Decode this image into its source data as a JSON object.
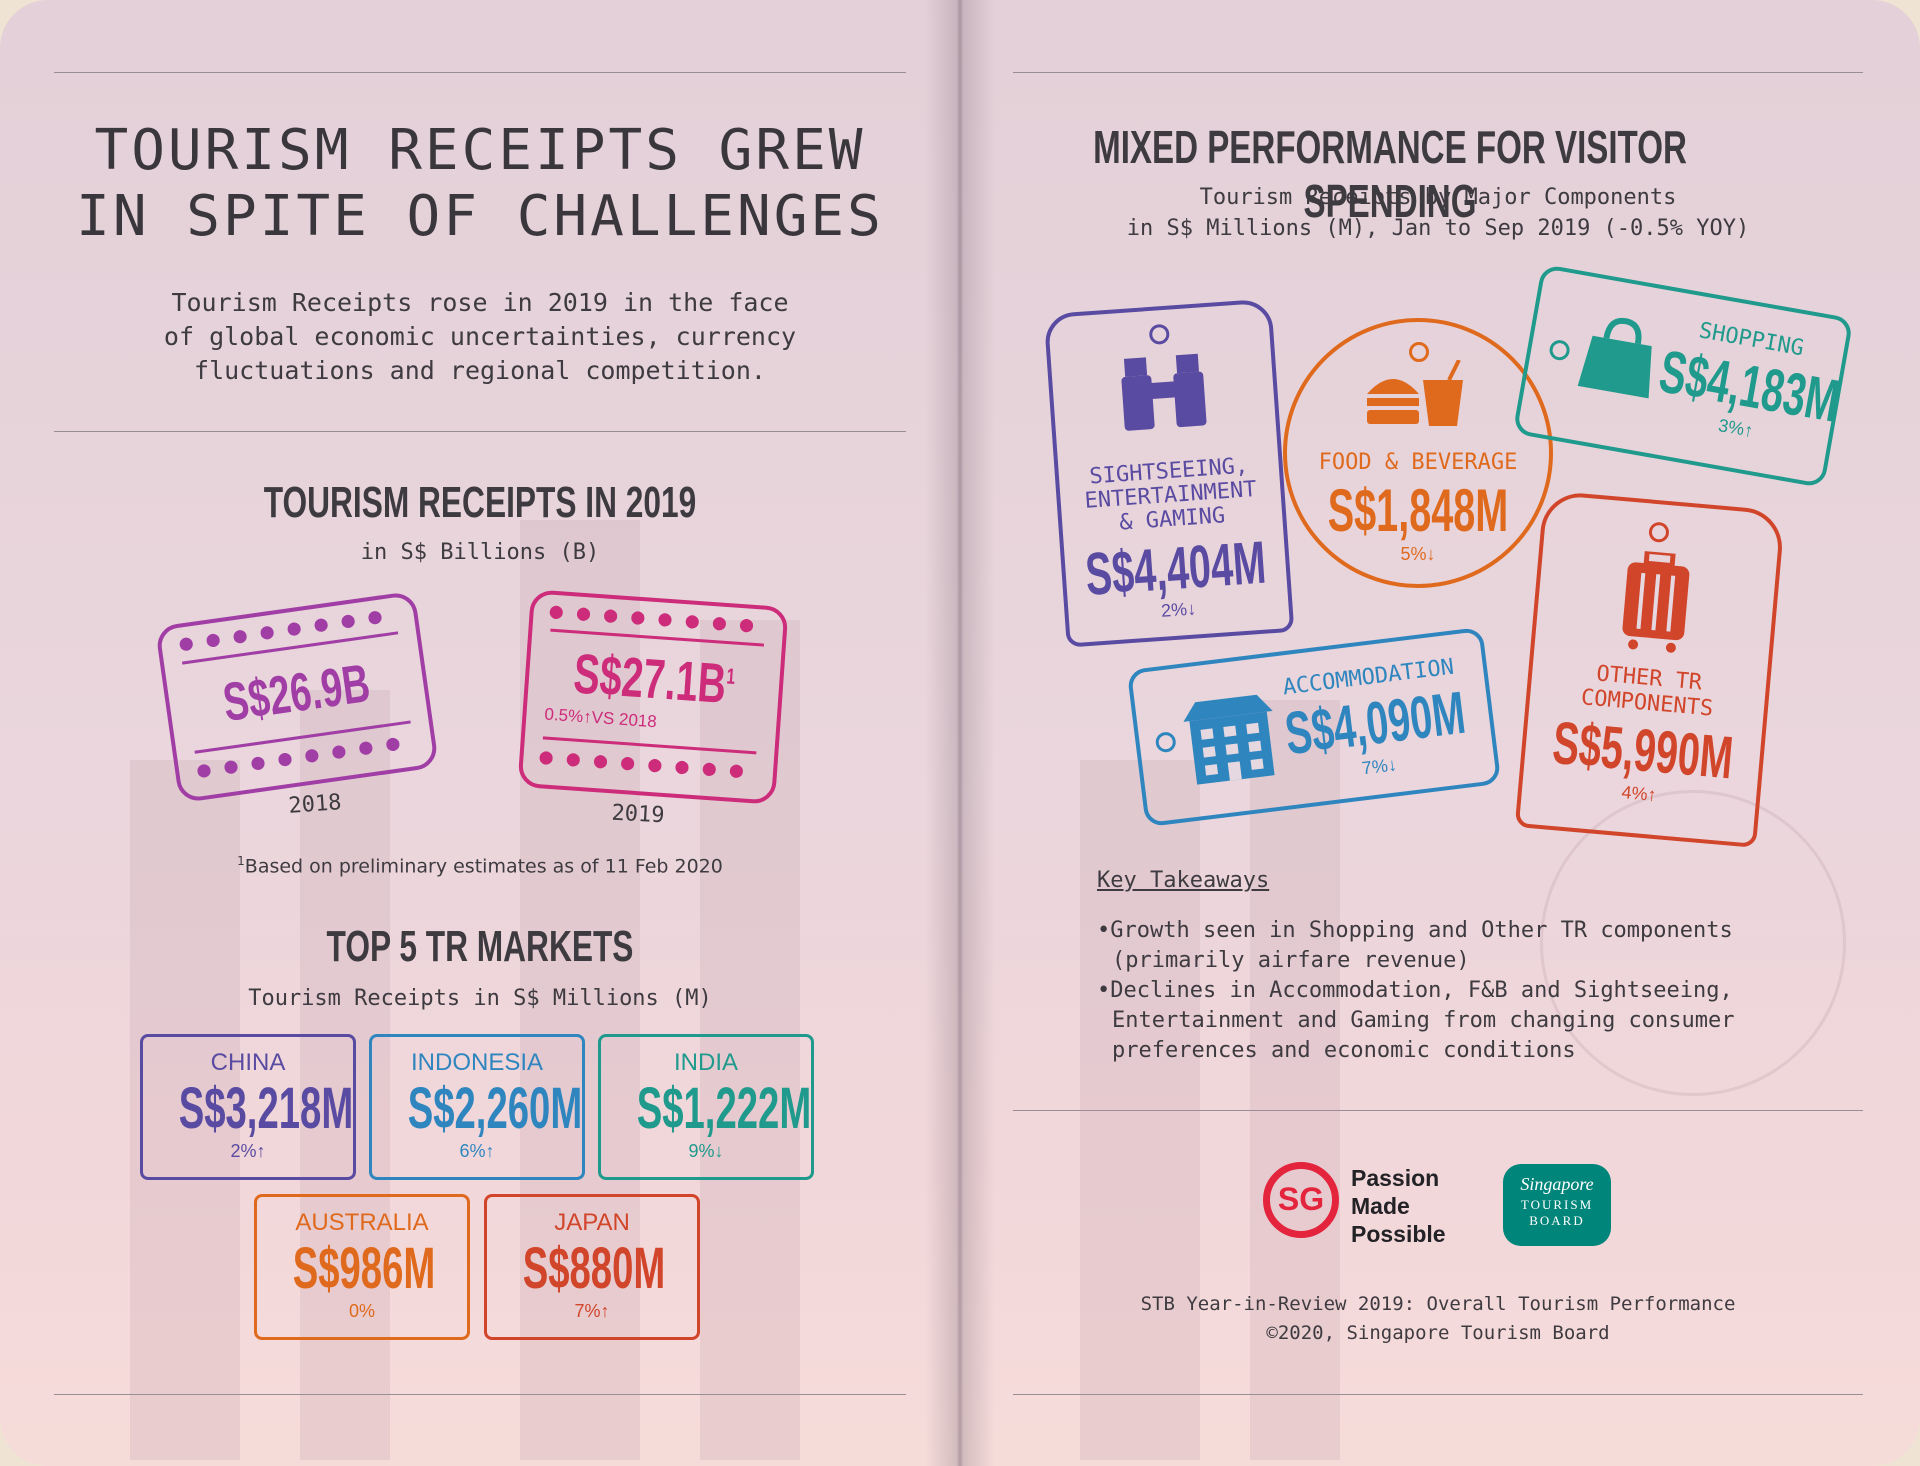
{
  "colors": {
    "sightseeing": "#5a4ba2",
    "food": "#df6a1e",
    "shopping": "#1f9a8c",
    "accommodation": "#2f86bf",
    "other": "#d1452b",
    "stamp2018": "#a03ea6",
    "stamp2019": "#cc2c7a",
    "china": "#5a4ba2",
    "indonesia": "#2f86bf",
    "india": "#1f9a8c",
    "australia": "#df6a1e",
    "japan": "#d1452b",
    "sg_red": "#e3243c",
    "stb_teal": "#00857a"
  },
  "left": {
    "headline_line1": "TOURISM RECEIPTS GREW",
    "headline_line2": "IN SPITE OF CHALLENGES",
    "intro_line1": "Tourism Receipts rose in 2019 in the face",
    "intro_line2": "of global economic uncertainties, currency",
    "intro_line3": "fluctuations and regional competition.",
    "tr_title": "TOURISM RECEIPTS IN 2019",
    "tr_sub": "in S$ Billions (B)",
    "stamp_2018_value": "S$26.9B",
    "stamp_2018_year": "2018",
    "stamp_2019_value": "S$27.1B",
    "stamp_2019_sup": "1",
    "stamp_2019_change": "0.5%↑VS 2018",
    "stamp_2019_year": "2019",
    "footnote_sup": "1",
    "footnote": "Based on preliminary estimates as of 11 Feb 2020",
    "markets_title": "TOP 5 TR MARKETS",
    "markets_sub": "Tourism Receipts in S$ Millions (M)",
    "markets": [
      {
        "name": "CHINA",
        "value": "S$3,218M",
        "change": "2%↑"
      },
      {
        "name": "INDONESIA",
        "value": "S$2,260M",
        "change": "6%↑"
      },
      {
        "name": "INDIA",
        "value": "S$1,222M",
        "change": "9%↓"
      },
      {
        "name": "AUSTRALIA",
        "value": "S$986M",
        "change": "0%"
      },
      {
        "name": "JAPAN",
        "value": "S$880M",
        "change": "7%↑"
      }
    ]
  },
  "right": {
    "headline": "MIXED PERFORMANCE FOR VISITOR SPENDING",
    "sub_line1": "Tourism Receipts by Major Components",
    "sub_line2": "in S$ Millions (M), Jan to Sep 2019 (-0.5% YOY)",
    "components": {
      "sightseeing": {
        "label_line1": "SIGHTSEEING,",
        "label_line2": "ENTERTAINMENT",
        "label_line3": "& GAMING",
        "value": "S$4,404M",
        "change": "2%↓",
        "icon": "binoculars-icon"
      },
      "food": {
        "label": "FOOD & BEVERAGE",
        "value": "S$1,848M",
        "change": "5%↓",
        "icon": "burger-drink-icon"
      },
      "shopping": {
        "label": "SHOPPING",
        "value": "S$4,183M",
        "change": "3%↑",
        "icon": "shopping-bag-icon"
      },
      "accommodation": {
        "label": "ACCOMMODATION",
        "value": "S$4,090M",
        "change": "7%↓",
        "icon": "building-icon"
      },
      "other": {
        "label_line1": "OTHER TR",
        "label_line2": "COMPONENTS",
        "value": "S$5,990M",
        "change": "4%↑",
        "icon": "suitcase-icon"
      }
    },
    "takeaways_title": "Key Takeaways",
    "takeaway1_line1": "•Growth seen in Shopping and Other TR components",
    "takeaway1_line2": "(primarily airfare revenue)",
    "takeaway2_line1": "•Declines in Accommodation, F&B and Sightseeing,",
    "takeaway2_line2": "Entertainment and Gaming from changing consumer",
    "takeaway2_line3": "preferences and economic conditions",
    "logo_sg": "SG",
    "logo_line1": "Passion",
    "logo_line2": "Made",
    "logo_line3": "Possible",
    "stb_line1": "Singapore",
    "stb_line2": "TOURISM",
    "stb_line3": "BOARD",
    "footer_line1": "STB Year-in-Review 2019: Overall Tourism Performance",
    "footer_line2": "©2020, Singapore Tourism Board"
  }
}
